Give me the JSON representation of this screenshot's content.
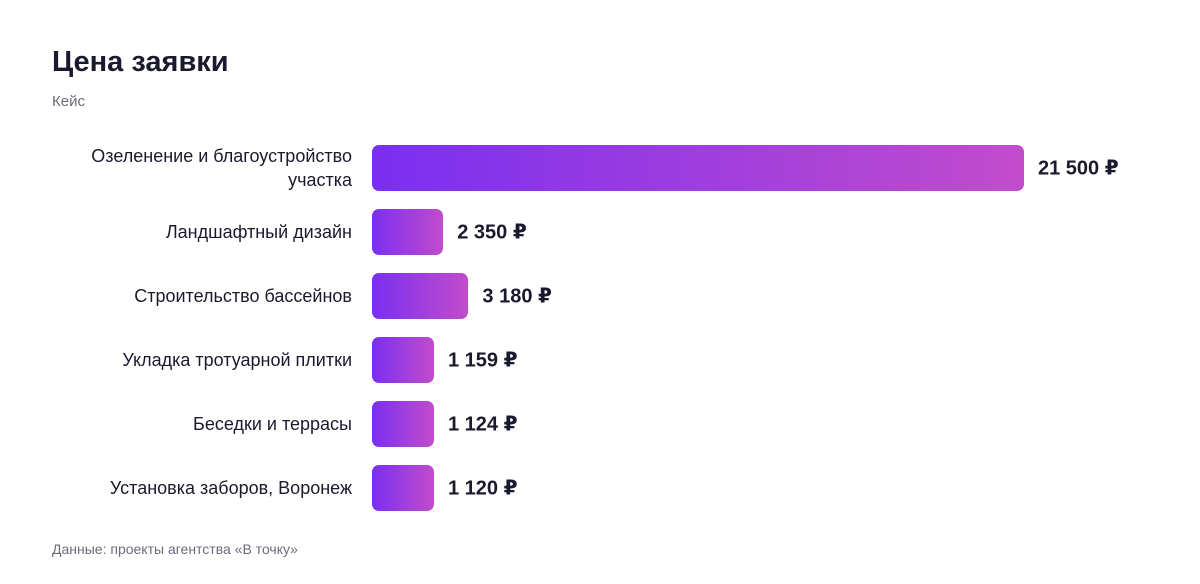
{
  "chart_data": {
    "type": "bar",
    "orientation": "horizontal",
    "title": "Цена заявки",
    "subtitle": "Кейс",
    "categories": [
      "Озеленение и благоустройство участка",
      "Ландшафтный дизайн",
      "Строительство бассейнов",
      "Укладка тротуарной плитки",
      "Беседки и террасы",
      "Установка заборов, Воронеж"
    ],
    "values": [
      21500,
      2350,
      3180,
      1159,
      1124,
      1120
    ],
    "value_labels": [
      "21 500 ₽",
      "2 350 ₽",
      "3 180 ₽",
      "1 159 ₽",
      "1 124 ₽",
      "1 120 ₽"
    ],
    "gradient": [
      "#7a2ff0",
      "#c24ccc"
    ],
    "source": "Данные: проекты агентства «В точку»"
  }
}
